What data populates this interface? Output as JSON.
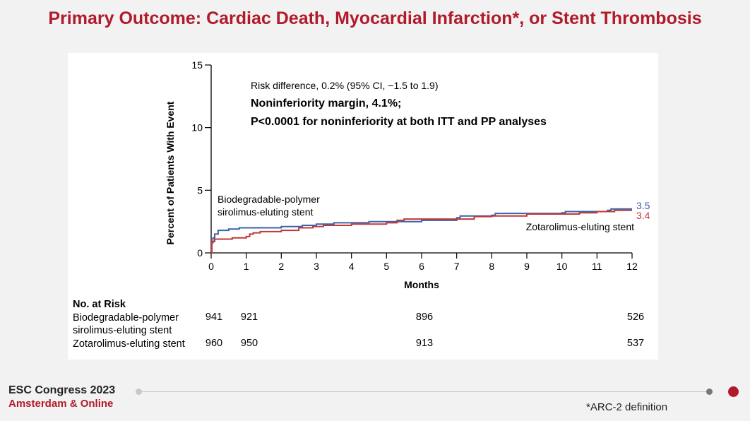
{
  "slide": {
    "title": "Primary Outcome: Cardiac Death, Myocardial Infarction*, or Stent Thrombosis",
    "footnote": "*ARC-2 definition"
  },
  "footer": {
    "congress": "ESC Congress 2023",
    "city": "Amsterdam & Online"
  },
  "chart_data": {
    "type": "line",
    "title": "",
    "xlabel": "Months",
    "ylabel": "Percent of Patients With Event",
    "xlim": [
      0,
      12
    ],
    "ylim": [
      0,
      15
    ],
    "x_ticks": [
      0,
      1,
      2,
      3,
      4,
      5,
      6,
      7,
      8,
      9,
      10,
      11,
      12
    ],
    "y_ticks": [
      0,
      5,
      10,
      15
    ],
    "annotations": {
      "risk_difference": "Risk difference, 0.2% (95% CI, −1.5 to 1.9)",
      "margin": "Noninferiority margin, 4.1%;",
      "p_value": "P<0.0001 for noninferiority at both ITT and PP analyses"
    },
    "series": [
      {
        "name": "Biodegradable-polymer sirolimus-eluting stent",
        "label_lines": [
          "Biodegradable-polymer",
          "sirolimus-eluting stent"
        ],
        "color": "#3a64a8",
        "end_value": "3.5",
        "points": [
          [
            0,
            0
          ],
          [
            0.02,
            0.8
          ],
          [
            0.05,
            1.2
          ],
          [
            0.1,
            1.5
          ],
          [
            0.2,
            1.8
          ],
          [
            0.5,
            1.9
          ],
          [
            0.8,
            2.0
          ],
          [
            2,
            2.1
          ],
          [
            2.6,
            2.2
          ],
          [
            3,
            2.3
          ],
          [
            3.5,
            2.4
          ],
          [
            4.5,
            2.5
          ],
          [
            6,
            2.6
          ],
          [
            7,
            2.8
          ],
          [
            7.1,
            2.95
          ],
          [
            8,
            3.0
          ],
          [
            8.1,
            3.15
          ],
          [
            10,
            3.2
          ],
          [
            10.1,
            3.3
          ],
          [
            11.3,
            3.4
          ],
          [
            11.4,
            3.5
          ],
          [
            12,
            3.5
          ]
        ]
      },
      {
        "name": "Zotarolimus-eluting stent",
        "label_lines": [
          "Zotarolimus-eluting stent"
        ],
        "color": "#c0393b",
        "end_value": "3.4",
        "points": [
          [
            0,
            0
          ],
          [
            0.02,
            0.9
          ],
          [
            0.1,
            1.1
          ],
          [
            0.6,
            1.2
          ],
          [
            1,
            1.3
          ],
          [
            1.1,
            1.5
          ],
          [
            1.2,
            1.6
          ],
          [
            1.4,
            1.7
          ],
          [
            2,
            1.8
          ],
          [
            2.5,
            2.0
          ],
          [
            2.9,
            2.1
          ],
          [
            3.2,
            2.2
          ],
          [
            4,
            2.3
          ],
          [
            5,
            2.4
          ],
          [
            5.3,
            2.6
          ],
          [
            5.5,
            2.7
          ],
          [
            7,
            2.7
          ],
          [
            7.5,
            2.9
          ],
          [
            8,
            2.95
          ],
          [
            9,
            3.1
          ],
          [
            10.5,
            3.2
          ],
          [
            11,
            3.3
          ],
          [
            11.5,
            3.4
          ],
          [
            12,
            3.4
          ]
        ]
      }
    ]
  },
  "risk_table": {
    "header": "No. at Risk",
    "months": [
      0,
      1,
      6,
      12
    ],
    "rows": [
      {
        "label_lines": [
          "Biodegradable-polymer",
          "sirolimus-eluting stent"
        ],
        "values": [
          "941",
          "921",
          "896",
          "526"
        ]
      },
      {
        "label_lines": [
          "Zotarolimus-eluting stent"
        ],
        "values": [
          "960",
          "950",
          "913",
          "537"
        ]
      }
    ]
  },
  "colors": {
    "title": "#b11a2b",
    "accent_dot": "#b11a2b"
  }
}
